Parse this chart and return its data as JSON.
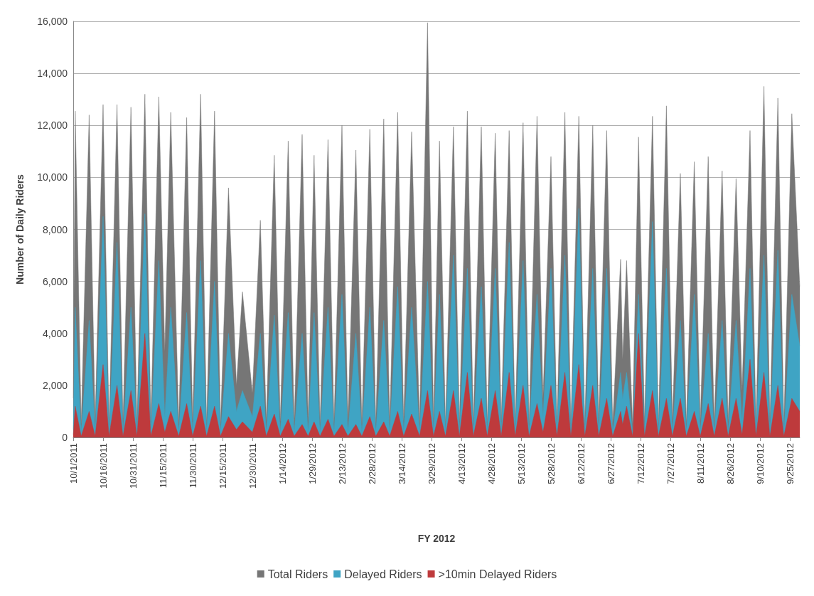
{
  "chart_data": {
    "type": "area",
    "xlabel": "FY 2012",
    "ylabel": "Number of Daily Riders",
    "x": [
      "2011-10-01",
      "2011-10-02",
      "2011-10-05",
      "2011-10-09",
      "2011-10-12",
      "2011-10-16",
      "2011-10-19",
      "2011-10-23",
      "2011-10-26",
      "2011-10-30",
      "2011-11-02",
      "2011-11-06",
      "2011-11-09",
      "2011-11-13",
      "2011-11-16",
      "2011-11-19",
      "2011-11-23",
      "2011-11-27",
      "2011-11-30",
      "2011-12-04",
      "2011-12-07",
      "2011-12-11",
      "2011-12-14",
      "2011-12-18",
      "2011-12-22",
      "2011-12-25",
      "2011-12-30",
      "2012-01-03",
      "2012-01-06",
      "2012-01-10",
      "2012-01-13",
      "2012-01-17",
      "2012-01-20",
      "2012-01-24",
      "2012-01-27",
      "2012-01-30",
      "2012-02-02",
      "2012-02-06",
      "2012-02-09",
      "2012-02-13",
      "2012-02-16",
      "2012-02-20",
      "2012-02-23",
      "2012-02-27",
      "2012-03-01",
      "2012-03-05",
      "2012-03-08",
      "2012-03-12",
      "2012-03-15",
      "2012-03-19",
      "2012-03-23",
      "2012-03-27",
      "2012-03-30",
      "2012-04-02",
      "2012-04-05",
      "2012-04-09",
      "2012-04-12",
      "2012-04-16",
      "2012-04-19",
      "2012-04-23",
      "2012-04-26",
      "2012-04-30",
      "2012-05-03",
      "2012-05-07",
      "2012-05-10",
      "2012-05-14",
      "2012-05-17",
      "2012-05-21",
      "2012-05-24",
      "2012-05-28",
      "2012-05-31",
      "2012-06-04",
      "2012-06-07",
      "2012-06-11",
      "2012-06-14",
      "2012-06-18",
      "2012-06-21",
      "2012-06-25",
      "2012-06-28",
      "2012-07-02",
      "2012-07-03",
      "2012-07-05",
      "2012-07-08",
      "2012-07-11",
      "2012-07-14",
      "2012-07-18",
      "2012-07-21",
      "2012-07-25",
      "2012-07-28",
      "2012-08-01",
      "2012-08-04",
      "2012-08-08",
      "2012-08-11",
      "2012-08-15",
      "2012-08-18",
      "2012-08-22",
      "2012-08-25",
      "2012-08-29",
      "2012-09-01",
      "2012-09-05",
      "2012-09-08",
      "2012-09-12",
      "2012-09-15",
      "2012-09-19",
      "2012-09-22",
      "2012-09-26",
      "2012-09-30"
    ],
    "series": [
      {
        "name": "Total Riders",
        "color": "#767676",
        "values": [
          1500,
          12550,
          500,
          12400,
          600,
          12800,
          500,
          12800,
          600,
          12700,
          500,
          13200,
          600,
          13100,
          3300,
          12500,
          500,
          12300,
          600,
          13200,
          500,
          12550,
          500,
          9600,
          2000,
          5600,
          1700,
          8350,
          600,
          10850,
          600,
          11400,
          500,
          11650,
          600,
          10850,
          500,
          11450,
          500,
          12000,
          600,
          11050,
          500,
          11850,
          500,
          12250,
          500,
          12500,
          600,
          11750,
          500,
          15950,
          600,
          11400,
          500,
          11950,
          600,
          12550,
          500,
          11950,
          500,
          11700,
          600,
          11800,
          500,
          12100,
          500,
          12350,
          1500,
          10800,
          500,
          12500,
          500,
          12350,
          500,
          12000,
          600,
          11800,
          500,
          6850,
          3000,
          6800,
          500,
          11550,
          600,
          12350,
          500,
          12750,
          600,
          10150,
          500,
          10600,
          600,
          10800,
          500,
          10250,
          600,
          9950,
          1800,
          11800,
          500,
          13500,
          600,
          13050,
          500,
          12450,
          5800
        ]
      },
      {
        "name": "Delayed Riders",
        "color": "#3fa4c4",
        "values": [
          300,
          5000,
          200,
          4500,
          200,
          8500,
          200,
          7500,
          200,
          5000,
          200,
          8600,
          200,
          6800,
          800,
          5000,
          200,
          4800,
          200,
          6800,
          200,
          6000,
          200,
          4000,
          1000,
          1800,
          800,
          4000,
          200,
          4700,
          200,
          4800,
          200,
          4000,
          200,
          4800,
          200,
          5000,
          200,
          5500,
          200,
          4000,
          200,
          5000,
          200,
          4500,
          200,
          5800,
          200,
          5000,
          200,
          6000,
          200,
          5500,
          200,
          7000,
          200,
          6500,
          200,
          5800,
          200,
          6500,
          200,
          7500,
          200,
          6800,
          200,
          5500,
          800,
          6500,
          200,
          7000,
          200,
          8800,
          200,
          6500,
          200,
          6500,
          200,
          2500,
          1500,
          2500,
          200,
          5500,
          200,
          8300,
          200,
          6500,
          200,
          4500,
          200,
          5500,
          200,
          4000,
          200,
          4500,
          200,
          4500,
          600,
          6500,
          200,
          7000,
          200,
          7200,
          200,
          5500,
          3500
        ]
      },
      {
        "name": ">10min Delayed Riders",
        "color": "#be3a3c",
        "values": [
          100,
          1200,
          50,
          1000,
          50,
          2800,
          50,
          2000,
          50,
          1800,
          50,
          4000,
          50,
          1300,
          200,
          1000,
          50,
          1300,
          50,
          1200,
          50,
          1200,
          50,
          800,
          300,
          600,
          200,
          1200,
          50,
          900,
          50,
          700,
          50,
          500,
          50,
          600,
          50,
          700,
          50,
          500,
          50,
          500,
          50,
          800,
          50,
          600,
          50,
          1000,
          50,
          900,
          50,
          1800,
          50,
          1000,
          50,
          1800,
          50,
          2500,
          50,
          1500,
          50,
          1800,
          50,
          2500,
          50,
          2000,
          50,
          1300,
          200,
          2000,
          50,
          2500,
          50,
          2800,
          50,
          2000,
          50,
          1500,
          50,
          1000,
          500,
          1200,
          50,
          4000,
          50,
          1800,
          50,
          1500,
          50,
          1500,
          50,
          1000,
          50,
          1300,
          50,
          1500,
          50,
          1500,
          100,
          3000,
          50,
          2500,
          50,
          2000,
          50,
          1500,
          1000
        ]
      }
    ],
    "xlim": [
      "2011-10-01",
      "2012-09-30"
    ],
    "xticks": [
      {
        "value": "2011-10-01",
        "label": "10/1/2011"
      },
      {
        "value": "2011-10-16",
        "label": "10/16/2011"
      },
      {
        "value": "2011-10-31",
        "label": "10/31/2011"
      },
      {
        "value": "2011-11-15",
        "label": "11/15/2011"
      },
      {
        "value": "2011-11-30",
        "label": "11/30/2011"
      },
      {
        "value": "2011-12-15",
        "label": "12/15/2011"
      },
      {
        "value": "2011-12-30",
        "label": "12/30/2011"
      },
      {
        "value": "2012-01-14",
        "label": "1/14/2012"
      },
      {
        "value": "2012-01-29",
        "label": "1/29/2012"
      },
      {
        "value": "2012-02-13",
        "label": "2/13/2012"
      },
      {
        "value": "2012-02-28",
        "label": "2/28/2012"
      },
      {
        "value": "2012-03-14",
        "label": "3/14/2012"
      },
      {
        "value": "2012-03-29",
        "label": "3/29/2012"
      },
      {
        "value": "2012-04-13",
        "label": "4/13/2012"
      },
      {
        "value": "2012-04-28",
        "label": "4/28/2012"
      },
      {
        "value": "2012-05-13",
        "label": "5/13/2012"
      },
      {
        "value": "2012-05-28",
        "label": "5/28/2012"
      },
      {
        "value": "2012-06-12",
        "label": "6/12/2012"
      },
      {
        "value": "2012-06-27",
        "label": "6/27/2012"
      },
      {
        "value": "2012-07-12",
        "label": "7/12/2012"
      },
      {
        "value": "2012-07-27",
        "label": "7/27/2012"
      },
      {
        "value": "2012-08-11",
        "label": "8/11/2012"
      },
      {
        "value": "2012-08-26",
        "label": "8/26/2012"
      },
      {
        "value": "2012-09-10",
        "label": "9/10/2012"
      },
      {
        "value": "2012-09-25",
        "label": "9/25/2012"
      }
    ],
    "ylim": [
      0,
      16000
    ],
    "yticks": [
      {
        "value": 0,
        "label": "0"
      },
      {
        "value": 2000,
        "label": "2,000"
      },
      {
        "value": 4000,
        "label": "4,000"
      },
      {
        "value": 6000,
        "label": "6,000"
      },
      {
        "value": 8000,
        "label": "8,000"
      },
      {
        "value": 10000,
        "label": "10,000"
      },
      {
        "value": 12000,
        "label": "12,000"
      },
      {
        "value": 14000,
        "label": "14,000"
      },
      {
        "value": 16000,
        "label": "16,000"
      }
    ],
    "grid": "y",
    "legend": "bottom"
  }
}
